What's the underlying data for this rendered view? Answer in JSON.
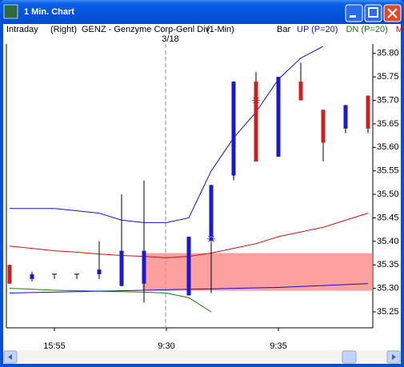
{
  "window_title": "1 Min. Chart",
  "header": {
    "mode": "Intraday",
    "axis_side": "(Right)",
    "symbol": "GENZ - Genzyme Corp-Genl Div",
    "interval": "(1-Min)",
    "style": "Bar"
  },
  "chart_data": {
    "type": "candlestick",
    "date_label": "3/18",
    "categories": [
      null,
      null,
      "15:55",
      null,
      null,
      null,
      null,
      "9:30",
      null,
      null,
      null,
      null,
      "9:35",
      null,
      null,
      null,
      null
    ],
    "open": [
      35.35,
      35.32,
      35.325,
      35.325,
      35.33,
      35.305,
      35.31,
      null,
      35.285,
      35.41,
      35.54,
      35.74,
      35.58,
      35.74,
      35.68,
      35.64,
      35.71
    ],
    "high": [
      35.35,
      35.335,
      35.325,
      35.325,
      35.4,
      35.5,
      35.53,
      null,
      35.41,
      35.52,
      35.74,
      35.76,
      35.75,
      35.78,
      35.68,
      35.69,
      35.71
    ],
    "low": [
      35.31,
      35.315,
      35.325,
      35.325,
      35.32,
      35.305,
      35.27,
      null,
      35.285,
      35.29,
      35.53,
      35.57,
      35.58,
      35.7,
      35.57,
      35.63,
      35.63
    ],
    "close": [
      35.31,
      35.33,
      35.325,
      35.325,
      35.34,
      35.38,
      35.38,
      null,
      35.41,
      35.52,
      35.74,
      35.57,
      35.75,
      35.7,
      35.61,
      35.69,
      35.64
    ],
    "up_color": "#1a1acc",
    "down_color": "#cc2020",
    "series": [
      {
        "name": "UP (P=20)",
        "color": "#1010d0",
        "values": [
          35.47,
          35.47,
          35.47,
          35.465,
          35.46,
          35.445,
          35.44,
          35.44,
          35.45,
          35.55,
          35.62,
          35.675,
          35.745,
          35.79,
          35.815,
          null,
          null
        ]
      },
      {
        "name": "DN (P=20)",
        "color": "#108010",
        "values": [
          35.3,
          35.298,
          35.296,
          35.295,
          35.294,
          35.293,
          35.292,
          35.29,
          35.28,
          35.25,
          null,
          null,
          null,
          null,
          null,
          null,
          null
        ]
      },
      {
        "name": "MA",
        "color": "#d01010",
        "values": [
          35.39,
          35.385,
          35.38,
          35.377,
          35.373,
          35.37,
          35.368,
          35.365,
          35.368,
          35.375,
          35.385,
          35.395,
          35.41,
          35.42,
          35.43,
          35.445,
          35.46
        ]
      },
      {
        "color": "#1010d0",
        "values": [
          35.29,
          35.291,
          35.292,
          35.293,
          35.294,
          35.295,
          35.296,
          35.297,
          35.298,
          35.299,
          35.3,
          35.301,
          35.302,
          35.304,
          35.306,
          35.308,
          35.31
        ]
      }
    ],
    "up_signals": [
      null,
      null,
      null,
      null,
      null,
      null,
      null,
      null,
      null,
      35.405,
      null,
      null,
      null,
      null,
      null,
      null,
      null
    ],
    "down_signals": [
      null,
      null,
      null,
      null,
      null,
      null,
      null,
      null,
      null,
      null,
      null,
      35.7,
      null,
      null,
      null,
      null,
      null
    ],
    "zone": {
      "from": 35.295,
      "to": 35.375,
      "color": "#ff8080"
    },
    "ylim": [
      35.216,
      35.82
    ],
    "yticks": [
      35.25,
      {
        "value": 35.3,
        "label": "35.30"
      },
      35.35,
      {
        "value": 35.4,
        "label": "35.40"
      },
      35.45,
      {
        "value": 35.5,
        "label": "35.50"
      },
      35.55,
      {
        "value": 35.6,
        "label": "35.60"
      },
      35.65,
      {
        "value": 35.7,
        "label": "35.70"
      },
      35.75,
      {
        "value": 35.8,
        "label": "35.80"
      }
    ]
  }
}
